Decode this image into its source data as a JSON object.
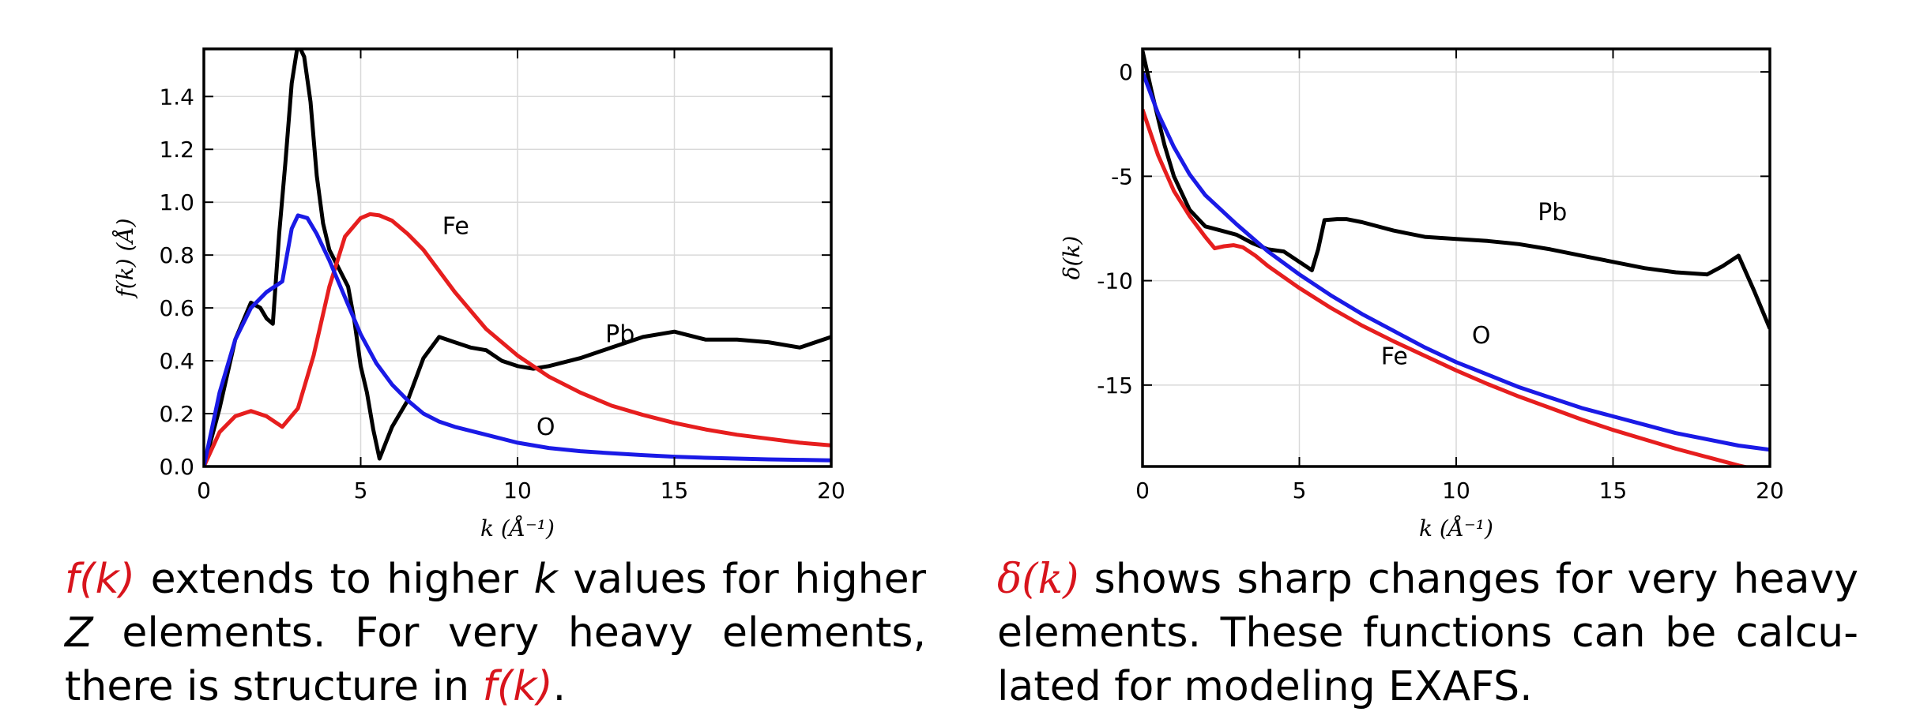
{
  "chart_data": [
    {
      "type": "line",
      "ylabel": "f(k) (Å)",
      "xlabel": "k (Å⁻¹)",
      "xlim": [
        0,
        20
      ],
      "ylim": [
        0,
        1.58
      ],
      "xticks": [
        "0",
        "5",
        "10",
        "15",
        "20"
      ],
      "xtick_values": [
        0,
        5,
        10,
        15,
        20
      ],
      "yticks": [
        "0.0",
        "0.2",
        "0.4",
        "0.6",
        "0.8",
        "1.0",
        "1.2",
        "1.4"
      ],
      "ytick_values": [
        0,
        0.2,
        0.4,
        0.6,
        0.8,
        1.0,
        1.2,
        1.4
      ],
      "grid": true,
      "series": [
        {
          "name": "Pb",
          "color": "#000000",
          "x": [
            0,
            0.5,
            1.0,
            1.5,
            1.8,
            2.0,
            2.2,
            2.4,
            2.6,
            2.8,
            3.0,
            3.2,
            3.4,
            3.6,
            3.8,
            4.0,
            4.3,
            4.6,
            4.8,
            5.0,
            5.2,
            5.4,
            5.6,
            6.0,
            6.5,
            7.0,
            7.5,
            8.0,
            8.5,
            9.0,
            9.5,
            10.0,
            10.5,
            11.0,
            12.0,
            13.0,
            14.0,
            15.0,
            16.0,
            17.0,
            18.0,
            19.0,
            20.0
          ],
          "y": [
            0.0,
            0.22,
            0.48,
            0.62,
            0.6,
            0.56,
            0.54,
            0.88,
            1.15,
            1.45,
            1.6,
            1.55,
            1.38,
            1.1,
            0.92,
            0.82,
            0.75,
            0.68,
            0.55,
            0.38,
            0.28,
            0.14,
            0.03,
            0.15,
            0.25,
            0.41,
            0.49,
            0.47,
            0.45,
            0.44,
            0.4,
            0.38,
            0.37,
            0.38,
            0.41,
            0.45,
            0.49,
            0.51,
            0.48,
            0.48,
            0.47,
            0.45,
            0.49
          ]
        },
        {
          "name": "Fe",
          "color": "#e61e1e",
          "x": [
            0,
            0.5,
            1.0,
            1.5,
            2.0,
            2.5,
            3.0,
            3.5,
            4.0,
            4.5,
            5.0,
            5.3,
            5.6,
            6.0,
            6.5,
            7.0,
            8.0,
            9.0,
            10.0,
            11.0,
            12.0,
            13.0,
            14.0,
            15.0,
            16.0,
            17.0,
            18.0,
            19.0,
            20.0
          ],
          "y": [
            0.0,
            0.13,
            0.19,
            0.21,
            0.19,
            0.15,
            0.22,
            0.42,
            0.68,
            0.87,
            0.94,
            0.955,
            0.95,
            0.93,
            0.88,
            0.82,
            0.66,
            0.52,
            0.42,
            0.34,
            0.28,
            0.23,
            0.195,
            0.165,
            0.14,
            0.12,
            0.105,
            0.09,
            0.08
          ]
        },
        {
          "name": "O",
          "color": "#1a1ae6",
          "x": [
            0,
            0.5,
            1.0,
            1.5,
            2.0,
            2.5,
            2.8,
            3.0,
            3.3,
            3.6,
            4.0,
            4.5,
            5.0,
            5.5,
            6.0,
            6.5,
            7.0,
            7.5,
            8.0,
            9.0,
            10.0,
            11.0,
            12.0,
            13.0,
            14.0,
            15.0,
            16.0,
            17.0,
            18.0,
            19.0,
            20.0
          ],
          "y": [
            0.0,
            0.28,
            0.48,
            0.6,
            0.66,
            0.7,
            0.9,
            0.95,
            0.94,
            0.88,
            0.78,
            0.64,
            0.5,
            0.39,
            0.31,
            0.25,
            0.2,
            0.17,
            0.15,
            0.12,
            0.09,
            0.07,
            0.058,
            0.05,
            0.043,
            0.037,
            0.033,
            0.03,
            0.027,
            0.025,
            0.023
          ]
        }
      ],
      "annotations": [
        {
          "text": "Fe",
          "x": 7.6,
          "y": 0.88
        },
        {
          "text": "Pb",
          "x": 12.8,
          "y": 0.47
        },
        {
          "text": "O",
          "x": 10.6,
          "y": 0.12
        }
      ]
    },
    {
      "type": "line",
      "ylabel": "δ(k)",
      "xlabel": "k (Å⁻¹)",
      "xlim": [
        0,
        20
      ],
      "ylim": [
        -18.9,
        1.1
      ],
      "xticks": [
        "0",
        "5",
        "10",
        "15",
        "20"
      ],
      "xtick_values": [
        0,
        5,
        10,
        15,
        20
      ],
      "yticks": [
        "0",
        "-5",
        "-10",
        "-15"
      ],
      "ytick_values": [
        0,
        -5,
        -10,
        -15
      ],
      "grid": true,
      "series": [
        {
          "name": "Pb",
          "color": "#000000",
          "x": [
            0,
            0.3,
            0.7,
            1.0,
            1.5,
            2.0,
            2.5,
            3.0,
            3.5,
            4.0,
            4.5,
            5.0,
            5.4,
            5.6,
            5.7,
            5.8,
            6.2,
            6.5,
            7.0,
            8.0,
            9.0,
            10.0,
            11.0,
            12.0,
            13.0,
            14.0,
            15.0,
            16.0,
            17.0,
            18.0,
            18.5,
            19.0,
            19.5,
            20.0
          ],
          "y": [
            1.0,
            -1.0,
            -3.5,
            -5.0,
            -6.6,
            -7.4,
            -7.6,
            -7.8,
            -8.2,
            -8.5,
            -8.6,
            -9.1,
            -9.5,
            -8.5,
            -7.8,
            -7.1,
            -7.05,
            -7.05,
            -7.2,
            -7.6,
            -7.9,
            -8.0,
            -8.1,
            -8.25,
            -8.5,
            -8.8,
            -9.1,
            -9.4,
            -9.6,
            -9.7,
            -9.3,
            -8.8,
            -10.5,
            -12.3
          ]
        },
        {
          "name": "O",
          "color": "#1a1ae6",
          "x": [
            0,
            0.5,
            1.0,
            1.5,
            2.0,
            3.0,
            4.0,
            5.0,
            6.0,
            7.0,
            8.0,
            9.0,
            10.0,
            11.0,
            12.0,
            13.0,
            14.0,
            15.0,
            16.0,
            17.0,
            18.0,
            19.0,
            20.0
          ],
          "y": [
            0.0,
            -2.0,
            -3.6,
            -4.9,
            -5.9,
            -7.3,
            -8.6,
            -9.7,
            -10.7,
            -11.6,
            -12.4,
            -13.2,
            -13.9,
            -14.5,
            -15.1,
            -15.6,
            -16.1,
            -16.5,
            -16.9,
            -17.3,
            -17.6,
            -17.9,
            -18.1
          ]
        },
        {
          "name": "Fe",
          "color": "#e61e1e",
          "x": [
            0,
            0.5,
            1.0,
            1.5,
            2.0,
            2.3,
            2.6,
            2.9,
            3.2,
            3.6,
            4.0,
            5.0,
            6.0,
            7.0,
            8.0,
            9.0,
            10.0,
            11.0,
            12.0,
            13.0,
            14.0,
            15.0,
            16.0,
            17.0,
            18.0,
            19.0,
            20.0
          ],
          "y": [
            -1.8,
            -4.0,
            -5.7,
            -6.9,
            -7.9,
            -8.45,
            -8.35,
            -8.3,
            -8.4,
            -8.8,
            -9.3,
            -10.35,
            -11.3,
            -12.15,
            -12.9,
            -13.6,
            -14.3,
            -14.95,
            -15.55,
            -16.1,
            -16.65,
            -17.15,
            -17.6,
            -18.05,
            -18.45,
            -18.85,
            -19.2
          ]
        }
      ],
      "annotations": [
        {
          "text": "Pb",
          "x": 12.6,
          "y": -7.1
        },
        {
          "text": "O",
          "x": 10.5,
          "y": -13.0
        },
        {
          "text": "Fe",
          "x": 7.6,
          "y": -14.0
        }
      ]
    }
  ],
  "captions": {
    "left": {
      "fk1": "f(k)",
      "t1": " extends to higher ",
      "k": "k",
      "t2": " values for higher ",
      "Z": "Z",
      "t3": " elements.  For very heavy elements, there is structure in ",
      "fk2": "f(k)",
      "t4": "."
    },
    "right": {
      "dk": "δ(k)",
      "t1": " shows sharp changes for very heavy elements.  These functions can be calcu-lated for modeling EXAFS."
    }
  },
  "colors": {
    "red_math": "#d8141c",
    "grid": "#d9d9d9"
  }
}
